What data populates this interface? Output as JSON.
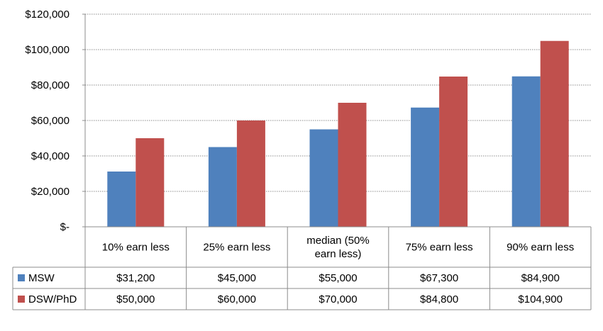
{
  "chart_data": {
    "type": "bar",
    "title": "",
    "xlabel": "",
    "ylabel": "",
    "ylim": [
      0,
      120000
    ],
    "yticks": [
      0,
      20000,
      40000,
      60000,
      80000,
      100000,
      120000
    ],
    "ytick_labels": [
      "$-",
      "$20,000",
      "$40,000",
      "$60,000",
      "$80,000",
      "$100,000",
      "$120,000"
    ],
    "grid": true,
    "legend_placement": "data table, left",
    "categories": [
      [
        "10% earn less"
      ],
      [
        "25% earn less"
      ],
      [
        "median (50%",
        "earn less)"
      ],
      [
        "75% earn less"
      ],
      [
        "90% earn less"
      ]
    ],
    "series": [
      {
        "name": "MSW",
        "color": "#4f81bd",
        "values": [
          31200,
          45000,
          55000,
          67300,
          84900
        ],
        "value_labels": [
          "$31,200",
          "$45,000",
          "$55,000",
          "$67,300",
          "$84,900"
        ]
      },
      {
        "name": "DSW/PhD",
        "color": "#c0504d",
        "values": [
          50000,
          60000,
          70000,
          84800,
          104900
        ],
        "value_labels": [
          "$50,000",
          "$60,000",
          "$70,000",
          "$84,800",
          "$104,900"
        ]
      }
    ]
  }
}
